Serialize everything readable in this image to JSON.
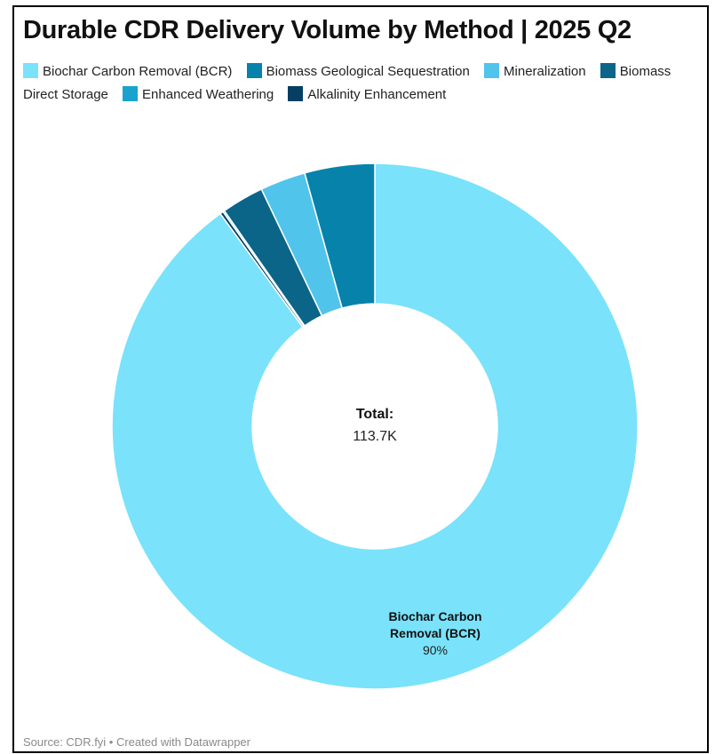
{
  "title": "Durable CDR Delivery Volume by Method | 2025 Q2",
  "legend": [
    {
      "name": "Biochar Carbon Removal (BCR)",
      "color": "#7ae2fb"
    },
    {
      "name": "Biomass Geological Sequestration",
      "color": "#0682ab"
    },
    {
      "name": "Mineralization",
      "color": "#51c4ec"
    },
    {
      "name": "Biomass Direct Storage",
      "color": "#0a6588"
    },
    {
      "name": "Enhanced Weathering",
      "color": "#1aa2cf"
    },
    {
      "name": "Alkalinity Enhancement",
      "color": "#073f63"
    }
  ],
  "center": {
    "title": "Total:",
    "value": "113.7K"
  },
  "slice_label": {
    "line1": "Biochar Carbon",
    "line2": "Removal (BCR)",
    "percent": "90%"
  },
  "source": "Source: CDR.fyi • Created with Datawrapper",
  "chart_data": {
    "type": "pie",
    "donut": true,
    "title": "Durable CDR Delivery Volume by Method | 2025 Q2",
    "total": "113.7K",
    "slices": [
      {
        "name": "Biochar Carbon Removal (BCR)",
        "value": 90.0,
        "color": "#7ae2fb"
      },
      {
        "name": "Biomass Geological Sequestration",
        "value": 4.3,
        "color": "#0682ab"
      },
      {
        "name": "Mineralization",
        "value": 2.8,
        "color": "#51c4ec"
      },
      {
        "name": "Biomass Direct Storage",
        "value": 2.6,
        "color": "#0a6588"
      },
      {
        "name": "Enhanced Weathering",
        "value": 0.1,
        "color": "#1aa2cf"
      },
      {
        "name": "Alkalinity Enhancement",
        "value": 0.2,
        "color": "#073f63"
      }
    ],
    "legend_position": "top",
    "source": "Source: CDR.fyi • Created with Datawrapper"
  }
}
